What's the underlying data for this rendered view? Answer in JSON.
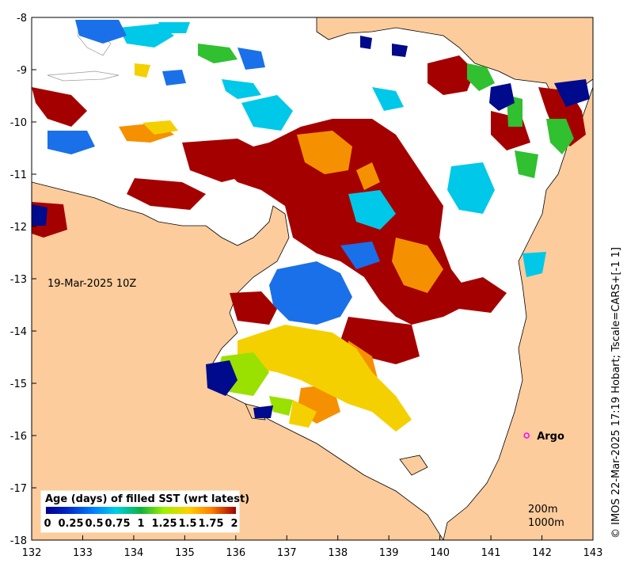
{
  "map": {
    "date_label": "19-Mar-2025 10Z",
    "credit": "© IMOS 22-Mar-2025 17:19 Hobart; Tscale=CARS+[-1 1]",
    "x_ticks": [
      "132",
      "133",
      "134",
      "135",
      "136",
      "137",
      "138",
      "139",
      "140",
      "141",
      "142",
      "143"
    ],
    "y_ticks": [
      "-8",
      "-9",
      "-10",
      "-11",
      "-12",
      "-13",
      "-14",
      "-15",
      "-16",
      "-17",
      "-18"
    ],
    "lon_range": [
      132,
      143
    ],
    "lat_range": [
      -18,
      -8
    ],
    "argo": {
      "label": "Argo",
      "lon": 141.7,
      "lat": -16.0,
      "color": "#ff00ff"
    },
    "contours": [
      "200m",
      "1000m"
    ],
    "colors": {
      "land": "#fccc9c",
      "water": "#ffffff"
    }
  },
  "colorbar": {
    "title": "Age (days) of filled SST (wrt latest)",
    "ticks": [
      "0",
      "0.25",
      "0.5",
      "0.75",
      "1",
      "1.25",
      "1.5",
      "1.75",
      "2"
    ],
    "colors": [
      "#00008f",
      "#0040ff",
      "#00c0ff",
      "#00c060",
      "#40d040",
      "#c0f000",
      "#ffe000",
      "#ff9000",
      "#b00000"
    ]
  }
}
